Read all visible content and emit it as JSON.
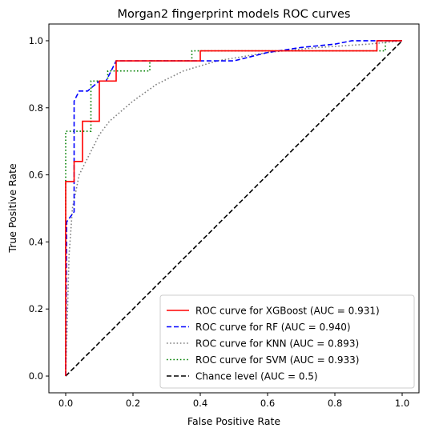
{
  "chart_data": {
    "type": "line",
    "title": "Morgan2 fingerprint models ROC curves",
    "xlabel": "False Positive Rate",
    "ylabel": "True Positive Rate",
    "xlim": [
      -0.05,
      1.05
    ],
    "ylim": [
      -0.05,
      1.05
    ],
    "xticks": [
      0.0,
      0.2,
      0.4,
      0.6,
      0.8,
      1.0
    ],
    "yticks": [
      0.0,
      0.2,
      0.4,
      0.6,
      0.8,
      1.0
    ],
    "xtick_labels": [
      "0.0",
      "0.2",
      "0.4",
      "0.6",
      "0.8",
      "1.0"
    ],
    "ytick_labels": [
      "0.0",
      "0.2",
      "0.4",
      "0.6",
      "0.8",
      "1.0"
    ],
    "grid": false,
    "legend_position": "lower-right",
    "series": [
      {
        "name": "ROC curve for XGBoost (AUC = 0.931)",
        "color": "#ff0000",
        "style": "solid",
        "x": [
          0,
          0,
          0.025,
          0.025,
          0.05,
          0.05,
          0.1,
          0.1,
          0.15,
          0.15,
          0.4,
          0.4,
          0.925,
          0.925,
          1.0
        ],
        "y": [
          0,
          0.58,
          0.58,
          0.64,
          0.64,
          0.76,
          0.76,
          0.88,
          0.88,
          0.94,
          0.94,
          0.97,
          0.97,
          1.0,
          1.0
        ]
      },
      {
        "name": "ROC curve for RF (AUC = 0.940)",
        "color": "#0000ff",
        "style": "dashed",
        "x": [
          0,
          0.003,
          0.025,
          0.025,
          0.04,
          0.065,
          0.1,
          0.12,
          0.15,
          0.3,
          0.4,
          0.5,
          0.6,
          0.7,
          0.8,
          0.85,
          0.9,
          1.0
        ],
        "y": [
          0,
          0.46,
          0.49,
          0.82,
          0.85,
          0.85,
          0.88,
          0.88,
          0.94,
          0.94,
          0.94,
          0.94,
          0.965,
          0.98,
          0.99,
          1.0,
          1.0,
          1.0
        ]
      },
      {
        "name": "ROC curve for KNN (AUC = 0.893)",
        "color": "#808080",
        "style": "dotted",
        "x": [
          0,
          0.01,
          0.02,
          0.04,
          0.07,
          0.1,
          0.13,
          0.2,
          0.27,
          0.35,
          0.45,
          0.6,
          0.75,
          0.9,
          1.0
        ],
        "y": [
          0,
          0.36,
          0.5,
          0.6,
          0.66,
          0.72,
          0.76,
          0.82,
          0.87,
          0.91,
          0.94,
          0.965,
          0.98,
          0.99,
          1.0
        ]
      },
      {
        "name": "ROC curve for SVM (AUC = 0.933)",
        "color": "#008000",
        "style": "dotted",
        "x": [
          0,
          0,
          0.05,
          0.05,
          0.075,
          0.075,
          0.125,
          0.125,
          0.15,
          0.15,
          0.25,
          0.25,
          0.375,
          0.375,
          0.95,
          0.95,
          1.0
        ],
        "y": [
          0,
          0.73,
          0.73,
          0.73,
          0.73,
          0.88,
          0.88,
          0.91,
          0.91,
          0.91,
          0.91,
          0.94,
          0.94,
          0.97,
          0.97,
          1.0,
          1.0
        ]
      },
      {
        "name": "Chance level (AUC = 0.5)",
        "color": "#000000",
        "style": "dashed",
        "x": [
          0,
          1.0
        ],
        "y": [
          0,
          1.0
        ]
      }
    ]
  }
}
